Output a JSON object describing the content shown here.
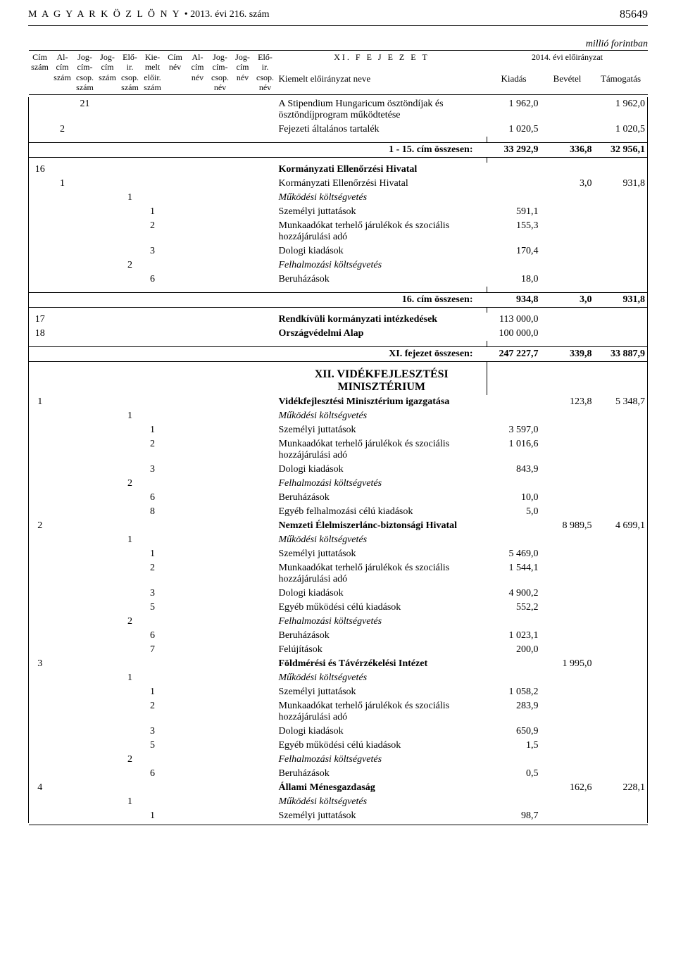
{
  "page_header": {
    "gazette": "M A G Y A R   K Ö Z L Ö N Y",
    "issue": "•  2013. évi 216. szám",
    "page_no": "85649"
  },
  "unit": "millió forintban",
  "col_headers": {
    "c1": "Cím szám",
    "c2": "Al-cím szám",
    "c3": "Jog-cím-csop. szám",
    "c4": "Jog-cím szám",
    "c5": "Elő-ir. csop. szám",
    "c6": "Kie-melt előir. szám",
    "c7": "Cím név",
    "c8": "Al-cím név",
    "c9": "Jog-cím-csop. név",
    "c10": "Jog-cím név",
    "c11": "Elő-ir. csop. név",
    "fejezet": "XI.  F E J E Z E T",
    "evi": "2014. évi előirányzat",
    "kiemelt": "Kiemelt előirányzat neve",
    "kiadas": "Kiadás",
    "bevetel": "Bevétel",
    "tamogatas": "Támogatás"
  },
  "rows": [
    {
      "c": [
        "",
        "",
        "21",
        "",
        "",
        "",
        "",
        "",
        "",
        "",
        "",
        ""
      ],
      "desc": "A Stipendium Hungaricum ösztöndíjak és ösztöndíjprogram működtetése",
      "v": [
        "1 962,0",
        "",
        "1 962,0"
      ]
    },
    {
      "c": [
        "",
        "2",
        "",
        "",
        "",
        "",
        "",
        "",
        "",
        "",
        "",
        ""
      ],
      "desc": "Fejezeti általános tartalék",
      "v": [
        "1 020,5",
        "",
        "1 020,5"
      ]
    }
  ],
  "sum1": {
    "label": "1 - 15. cím összesen:",
    "v": [
      "33 292,9",
      "336,8",
      "32 956,1"
    ]
  },
  "rows2": [
    {
      "c": [
        "16",
        "",
        "",
        "",
        "",
        "",
        "",
        "",
        "",
        "",
        "",
        ""
      ],
      "desc": "Kormányzati Ellenőrzési Hivatal",
      "v": [
        "",
        "",
        ""
      ],
      "bold": true
    },
    {
      "c": [
        "",
        "1",
        "",
        "",
        "",
        "",
        "",
        "",
        "",
        "",
        "",
        ""
      ],
      "desc": "Kormányzati Ellenőrzési Hivatal",
      "v": [
        "",
        "3,0",
        "931,8"
      ]
    },
    {
      "c": [
        "",
        "",
        "",
        "",
        "1",
        "",
        "",
        "",
        "",
        "",
        "",
        ""
      ],
      "desc": "Működési költségvetés",
      "v": [
        "",
        "",
        ""
      ],
      "italic": true
    },
    {
      "c": [
        "",
        "",
        "",
        "",
        "",
        "1",
        "",
        "",
        "",
        "",
        "",
        ""
      ],
      "desc": "Személyi juttatások",
      "v": [
        "591,1",
        "",
        ""
      ]
    },
    {
      "c": [
        "",
        "",
        "",
        "",
        "",
        "2",
        "",
        "",
        "",
        "",
        "",
        ""
      ],
      "desc": "Munkaadókat terhelő járulékok és szociális hozzájárulási adó",
      "v": [
        "155,3",
        "",
        ""
      ]
    },
    {
      "c": [
        "",
        "",
        "",
        "",
        "",
        "3",
        "",
        "",
        "",
        "",
        "",
        ""
      ],
      "desc": "Dologi kiadások",
      "v": [
        "170,4",
        "",
        ""
      ]
    },
    {
      "c": [
        "",
        "",
        "",
        "",
        "2",
        "",
        "",
        "",
        "",
        "",
        "",
        ""
      ],
      "desc": "Felhalmozási költségvetés",
      "v": [
        "",
        "",
        ""
      ],
      "italic": true
    },
    {
      "c": [
        "",
        "",
        "",
        "",
        "",
        "6",
        "",
        "",
        "",
        "",
        "",
        ""
      ],
      "desc": "Beruházások",
      "v": [
        "18,0",
        "",
        ""
      ]
    }
  ],
  "sum2": {
    "label": "16. cím összesen:",
    "v": [
      "934,8",
      "3,0",
      "931,8"
    ]
  },
  "rows3": [
    {
      "c": [
        "17",
        "",
        "",
        "",
        "",
        "",
        "",
        "",
        "",
        "",
        "",
        ""
      ],
      "desc": "Rendkívüli kormányzati intézkedések",
      "v": [
        "113 000,0",
        "",
        ""
      ],
      "bold": true
    },
    {
      "c": [
        "18",
        "",
        "",
        "",
        "",
        "",
        "",
        "",
        "",
        "",
        "",
        ""
      ],
      "desc": "Országvédelmi Alap",
      "v": [
        "100 000,0",
        "",
        ""
      ],
      "bold": true
    }
  ],
  "sum3": {
    "label": "XI. fejezet összesen:",
    "v": [
      "247 227,7",
      "339,8",
      "33 887,9"
    ]
  },
  "chapter2": "XII. VIDÉKFEJLESZTÉSI MINISZTÉRIUM",
  "rows4": [
    {
      "c": [
        "1",
        "",
        "",
        "",
        "",
        "",
        "",
        "",
        "",
        "",
        "",
        ""
      ],
      "desc": "Vidékfejlesztési Minisztérium igazgatása",
      "v": [
        "",
        "123,8",
        "5 348,7"
      ],
      "bold": true
    },
    {
      "c": [
        "",
        "",
        "",
        "",
        "1",
        "",
        "",
        "",
        "",
        "",
        "",
        ""
      ],
      "desc": "Működési költségvetés",
      "v": [
        "",
        "",
        ""
      ],
      "italic": true
    },
    {
      "c": [
        "",
        "",
        "",
        "",
        "",
        "1",
        "",
        "",
        "",
        "",
        "",
        ""
      ],
      "desc": "Személyi juttatások",
      "v": [
        "3 597,0",
        "",
        ""
      ]
    },
    {
      "c": [
        "",
        "",
        "",
        "",
        "",
        "2",
        "",
        "",
        "",
        "",
        "",
        ""
      ],
      "desc": "Munkaadókat terhelő járulékok és szociális hozzájárulási adó",
      "v": [
        "1 016,6",
        "",
        ""
      ]
    },
    {
      "c": [
        "",
        "",
        "",
        "",
        "",
        "3",
        "",
        "",
        "",
        "",
        "",
        ""
      ],
      "desc": "Dologi kiadások",
      "v": [
        "843,9",
        "",
        ""
      ]
    },
    {
      "c": [
        "",
        "",
        "",
        "",
        "2",
        "",
        "",
        "",
        "",
        "",
        "",
        ""
      ],
      "desc": "Felhalmozási költségvetés",
      "v": [
        "",
        "",
        ""
      ],
      "italic": true
    },
    {
      "c": [
        "",
        "",
        "",
        "",
        "",
        "6",
        "",
        "",
        "",
        "",
        "",
        ""
      ],
      "desc": "Beruházások",
      "v": [
        "10,0",
        "",
        ""
      ]
    },
    {
      "c": [
        "",
        "",
        "",
        "",
        "",
        "8",
        "",
        "",
        "",
        "",
        "",
        ""
      ],
      "desc": "Egyéb felhalmozási célú kiadások",
      "v": [
        "5,0",
        "",
        ""
      ]
    },
    {
      "c": [
        "2",
        "",
        "",
        "",
        "",
        "",
        "",
        "",
        "",
        "",
        "",
        ""
      ],
      "desc": "Nemzeti Élelmiszerlánc-biztonsági Hivatal",
      "v": [
        "",
        "8 989,5",
        "4 699,1"
      ],
      "bold": true
    },
    {
      "c": [
        "",
        "",
        "",
        "",
        "1",
        "",
        "",
        "",
        "",
        "",
        "",
        ""
      ],
      "desc": "Működési költségvetés",
      "v": [
        "",
        "",
        ""
      ],
      "italic": true
    },
    {
      "c": [
        "",
        "",
        "",
        "",
        "",
        "1",
        "",
        "",
        "",
        "",
        "",
        ""
      ],
      "desc": "Személyi juttatások",
      "v": [
        "5 469,0",
        "",
        ""
      ]
    },
    {
      "c": [
        "",
        "",
        "",
        "",
        "",
        "2",
        "",
        "",
        "",
        "",
        "",
        ""
      ],
      "desc": "Munkaadókat terhelő járulékok és szociális hozzájárulási adó",
      "v": [
        "1 544,1",
        "",
        ""
      ]
    },
    {
      "c": [
        "",
        "",
        "",
        "",
        "",
        "3",
        "",
        "",
        "",
        "",
        "",
        ""
      ],
      "desc": "Dologi kiadások",
      "v": [
        "4 900,2",
        "",
        ""
      ]
    },
    {
      "c": [
        "",
        "",
        "",
        "",
        "",
        "5",
        "",
        "",
        "",
        "",
        "",
        ""
      ],
      "desc": "Egyéb működési célú kiadások",
      "v": [
        "552,2",
        "",
        ""
      ]
    },
    {
      "c": [
        "",
        "",
        "",
        "",
        "2",
        "",
        "",
        "",
        "",
        "",
        "",
        ""
      ],
      "desc": "Felhalmozási költségvetés",
      "v": [
        "",
        "",
        ""
      ],
      "italic": true
    },
    {
      "c": [
        "",
        "",
        "",
        "",
        "",
        "6",
        "",
        "",
        "",
        "",
        "",
        ""
      ],
      "desc": "Beruházások",
      "v": [
        "1 023,1",
        "",
        ""
      ]
    },
    {
      "c": [
        "",
        "",
        "",
        "",
        "",
        "7",
        "",
        "",
        "",
        "",
        "",
        ""
      ],
      "desc": "Felújítások",
      "v": [
        "200,0",
        "",
        ""
      ]
    },
    {
      "c": [
        "3",
        "",
        "",
        "",
        "",
        "",
        "",
        "",
        "",
        "",
        "",
        ""
      ],
      "desc": "Földmérési és Távérzékelési Intézet",
      "v": [
        "",
        "1 995,0",
        ""
      ],
      "bold": true
    },
    {
      "c": [
        "",
        "",
        "",
        "",
        "1",
        "",
        "",
        "",
        "",
        "",
        "",
        ""
      ],
      "desc": "Működési költségvetés",
      "v": [
        "",
        "",
        ""
      ],
      "italic": true
    },
    {
      "c": [
        "",
        "",
        "",
        "",
        "",
        "1",
        "",
        "",
        "",
        "",
        "",
        ""
      ],
      "desc": "Személyi juttatások",
      "v": [
        "1 058,2",
        "",
        ""
      ]
    },
    {
      "c": [
        "",
        "",
        "",
        "",
        "",
        "2",
        "",
        "",
        "",
        "",
        "",
        ""
      ],
      "desc": "Munkaadókat terhelő járulékok és szociális hozzájárulási adó",
      "v": [
        "283,9",
        "",
        ""
      ]
    },
    {
      "c": [
        "",
        "",
        "",
        "",
        "",
        "3",
        "",
        "",
        "",
        "",
        "",
        ""
      ],
      "desc": "Dologi kiadások",
      "v": [
        "650,9",
        "",
        ""
      ]
    },
    {
      "c": [
        "",
        "",
        "",
        "",
        "",
        "5",
        "",
        "",
        "",
        "",
        "",
        ""
      ],
      "desc": "Egyéb működési célú kiadások",
      "v": [
        "1,5",
        "",
        ""
      ]
    },
    {
      "c": [
        "",
        "",
        "",
        "",
        "2",
        "",
        "",
        "",
        "",
        "",
        "",
        ""
      ],
      "desc": "Felhalmozási költségvetés",
      "v": [
        "",
        "",
        ""
      ],
      "italic": true
    },
    {
      "c": [
        "",
        "",
        "",
        "",
        "",
        "6",
        "",
        "",
        "",
        "",
        "",
        ""
      ],
      "desc": "Beruházások",
      "v": [
        "0,5",
        "",
        ""
      ]
    },
    {
      "c": [
        "4",
        "",
        "",
        "",
        "",
        "",
        "",
        "",
        "",
        "",
        "",
        ""
      ],
      "desc": "Állami Ménesgazdaság",
      "v": [
        "",
        "162,6",
        "228,1"
      ],
      "bold": true
    },
    {
      "c": [
        "",
        "",
        "",
        "",
        "1",
        "",
        "",
        "",
        "",
        "",
        "",
        ""
      ],
      "desc": "Működési költségvetés",
      "v": [
        "",
        "",
        ""
      ],
      "italic": true
    },
    {
      "c": [
        "",
        "",
        "",
        "",
        "",
        "1",
        "",
        "",
        "",
        "",
        "",
        ""
      ],
      "desc": "Személyi juttatások",
      "v": [
        "98,7",
        "",
        ""
      ]
    }
  ]
}
